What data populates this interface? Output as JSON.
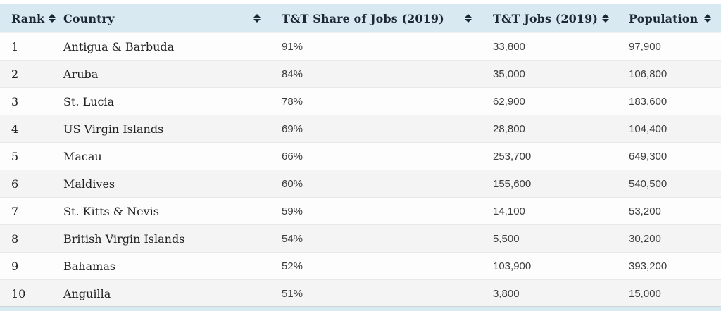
{
  "table": {
    "columns": [
      {
        "label": "Rank"
      },
      {
        "label": "Country"
      },
      {
        "label": "T&T Share of Jobs (2019)"
      },
      {
        "label": "T&T Jobs (2019)"
      },
      {
        "label": "Population"
      }
    ],
    "rows": [
      {
        "rank": "1",
        "country": "Antigua & Barbuda",
        "share": "91%",
        "jobs": "33,800",
        "population": "97,900"
      },
      {
        "rank": "2",
        "country": "Aruba",
        "share": "84%",
        "jobs": "35,000",
        "population": "106,800"
      },
      {
        "rank": "3",
        "country": "St. Lucia",
        "share": "78%",
        "jobs": "62,900",
        "population": "183,600"
      },
      {
        "rank": "4",
        "country": "US Virgin Islands",
        "share": "69%",
        "jobs": "28,800",
        "population": "104,400"
      },
      {
        "rank": "5",
        "country": "Macau",
        "share": "66%",
        "jobs": "253,700",
        "population": "649,300"
      },
      {
        "rank": "6",
        "country": "Maldives",
        "share": "60%",
        "jobs": "155,600",
        "population": "540,500"
      },
      {
        "rank": "7",
        "country": "St. Kitts & Nevis",
        "share": "59%",
        "jobs": "14,100",
        "population": "53,200"
      },
      {
        "rank": "8",
        "country": "British Virgin Islands",
        "share": "54%",
        "jobs": "5,500",
        "population": "30,200"
      },
      {
        "rank": "9",
        "country": "Bahamas",
        "share": "52%",
        "jobs": "103,900",
        "population": "393,200"
      },
      {
        "rank": "10",
        "country": "Anguilla",
        "share": "51%",
        "jobs": "3,800",
        "population": "15,000"
      }
    ],
    "colors": {
      "header_bg": "#d9e9f2",
      "header_text": "#1b2733",
      "even_row_bg": "#f5f4f5",
      "odd_row_bg": "#fdfdfd",
      "row_border": "#e8e8e8"
    }
  }
}
